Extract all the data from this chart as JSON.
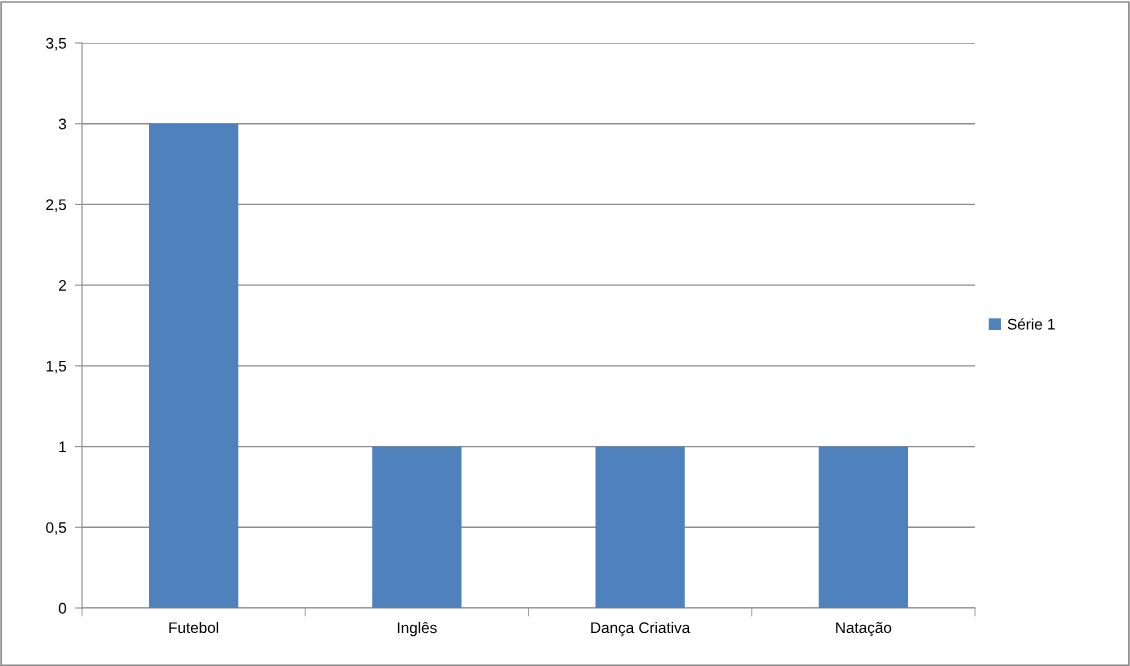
{
  "chart_data": {
    "type": "bar",
    "categories": [
      "Futebol",
      "Inglês",
      "Dança Criativa",
      "Natação"
    ],
    "series": [
      {
        "name": "Série 1",
        "color": "#4f81bd",
        "values": [
          3,
          1,
          1,
          1
        ]
      }
    ],
    "ylim": [
      0,
      3.5
    ],
    "yticks": [
      0,
      {
        "value": 0.5,
        "label": "0,5"
      },
      1,
      {
        "value": 1.5,
        "label": "1,5"
      },
      2,
      {
        "value": 2.5,
        "label": "2,5"
      },
      3,
      {
        "value": 3.5,
        "label": "3,5"
      }
    ],
    "grid": "y",
    "legend": "right"
  }
}
